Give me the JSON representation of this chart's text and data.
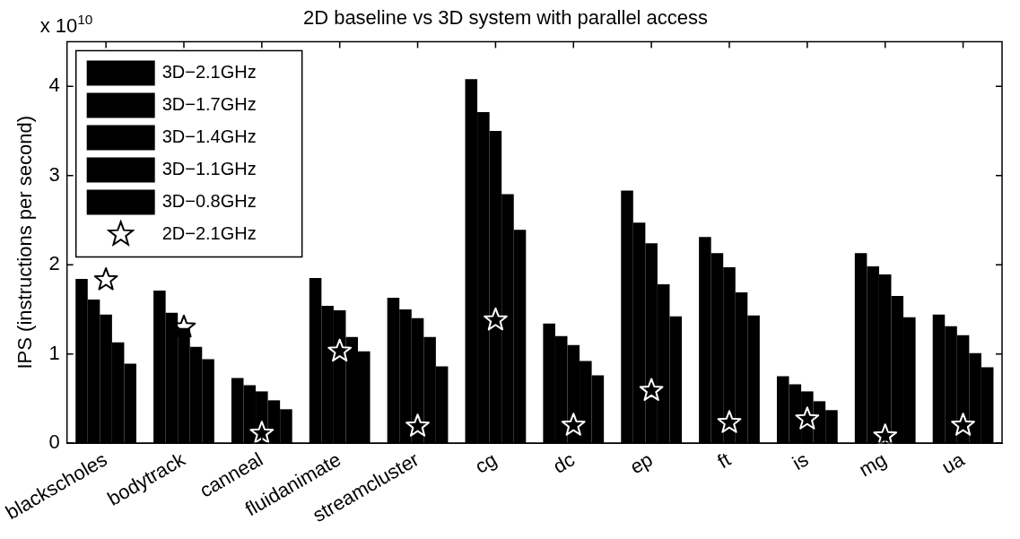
{
  "chart_data": {
    "type": "bar",
    "title": "2D baseline vs 3D system with parallel access",
    "ylabel": "IPS (instructions per second)",
    "annotations": [
      "x 10$^{10}$"
    ],
    "categories": [
      "blackscholes",
      "bodytrack",
      "canneal",
      "fluidanimate",
      "streamcluster",
      "cg",
      "dc",
      "ep",
      "ft",
      "is",
      "mg",
      "ua"
    ],
    "series": [
      {
        "name": "3D−2.1GHz",
        "color": "#000000",
        "values": [
          1.84,
          1.71,
          0.73,
          1.85,
          1.63,
          4.08,
          1.34,
          2.83,
          2.31,
          0.75,
          2.13,
          1.44
        ]
      },
      {
        "name": "3D−1.7GHz",
        "color": "#000000",
        "values": [
          1.61,
          1.46,
          0.65,
          1.54,
          1.5,
          3.71,
          1.2,
          2.47,
          2.13,
          0.66,
          1.98,
          1.31
        ]
      },
      {
        "name": "3D−1.4GHz",
        "color": "#000000",
        "values": [
          1.44,
          1.29,
          0.58,
          1.49,
          1.4,
          3.5,
          1.1,
          2.24,
          1.97,
          0.58,
          1.89,
          1.21
        ]
      },
      {
        "name": "3D−1.1GHz",
        "color": "#000000",
        "values": [
          1.13,
          1.08,
          0.48,
          1.19,
          1.19,
          2.79,
          0.92,
          1.78,
          1.69,
          0.47,
          1.65,
          1.01
        ]
      },
      {
        "name": "3D−0.8GHz",
        "color": "#000000",
        "values": [
          0.89,
          0.94,
          0.38,
          1.03,
          0.86,
          2.39,
          0.76,
          1.42,
          1.43,
          0.37,
          1.41,
          0.85
        ]
      },
      {
        "name": "2D−2.1GHz",
        "type": "scatter",
        "color": "#000000",
        "colors": [
          "#000000",
          "#000000",
          "#ffffff",
          "#ffffff",
          "#ffffff",
          "#ffffff",
          "#ffffff",
          "#ffffff",
          "#ffffff",
          "#ffffff",
          "#ffffff",
          "#ffffff"
        ],
        "x": [
          "blackscholes",
          "bodytrack",
          "canneal",
          "fluidanimate",
          "streamcluster",
          "cg",
          "dc",
          "ep",
          "ft",
          "is",
          "mg",
          "ua"
        ],
        "values": [
          1.83,
          1.3,
          0.11,
          1.03,
          0.19,
          1.38,
          0.2,
          0.59,
          0.23,
          0.27,
          0.08,
          0.2
        ]
      }
    ],
    "ylim": [
      0,
      4.5
    ],
    "yticks": [
      0,
      1,
      2,
      3,
      4
    ],
    "grid": false,
    "legend": "top left",
    "marker": "star"
  }
}
